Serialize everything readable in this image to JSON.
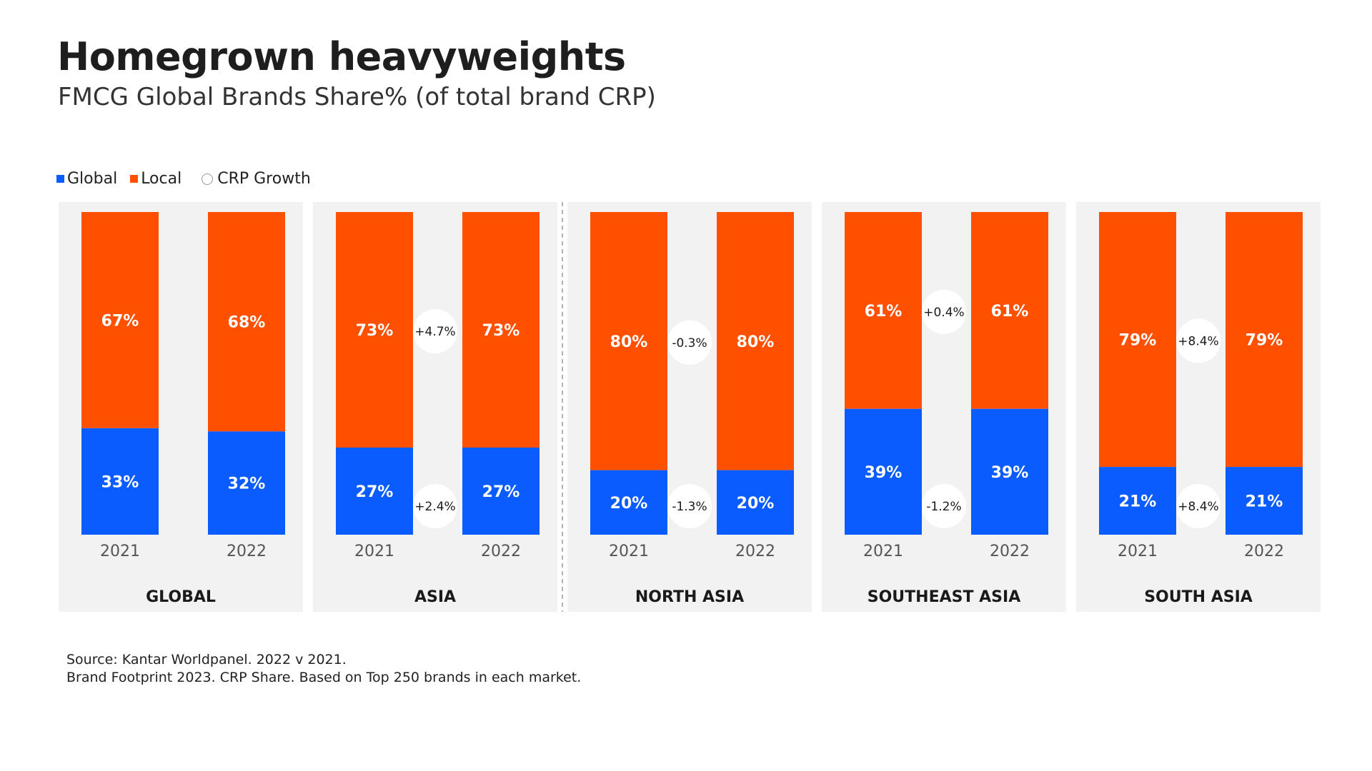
{
  "header": {
    "title": "Homegrown heavyweights",
    "subtitle": "FMCG Global Brands Share% (of total brand CRP)"
  },
  "legend": {
    "global_label": "Global",
    "local_label": "Local",
    "growth_label": "CRP Growth"
  },
  "colors": {
    "global": "#0b5cff",
    "local": "#ff5000",
    "panel": "#f2f2f2",
    "bubble": "#ffffff"
  },
  "chart_data": {
    "type": "bar",
    "stacked": true,
    "ylim": [
      0,
      100
    ],
    "categories": [
      "2021",
      "2022"
    ],
    "legend_position": "top-left",
    "groups": [
      {
        "name": "GLOBAL",
        "global": [
          33,
          32
        ],
        "local": [
          67,
          68
        ],
        "global_labels": [
          "33%",
          "32%"
        ],
        "local_labels": [
          "67%",
          "68%"
        ],
        "local_growth": "",
        "global_growth": ""
      },
      {
        "name": "ASIA",
        "global": [
          27,
          27
        ],
        "local": [
          73,
          73
        ],
        "global_labels": [
          "27%",
          "27%"
        ],
        "local_labels": [
          "73%",
          "73%"
        ],
        "local_growth": "+4.7%",
        "global_growth": "+2.4%"
      },
      {
        "name": "NORTH ASIA",
        "global": [
          20,
          20
        ],
        "local": [
          80,
          80
        ],
        "global_labels": [
          "20%",
          "20%"
        ],
        "local_labels": [
          "80%",
          "80%"
        ],
        "local_growth": "-0.3%",
        "global_growth": "-1.3%"
      },
      {
        "name": "SOUTHEAST ASIA",
        "global": [
          39,
          39
        ],
        "local": [
          61,
          61
        ],
        "global_labels": [
          "39%",
          "39%"
        ],
        "local_labels": [
          "61%",
          "61%"
        ],
        "local_growth": "+0.4%",
        "global_growth": "-1.2%"
      },
      {
        "name": "SOUTH ASIA",
        "global": [
          21,
          21
        ],
        "local": [
          79,
          79
        ],
        "global_labels": [
          "21%",
          "21%"
        ],
        "local_labels": [
          "79%",
          "79%"
        ],
        "local_growth": "+8.4%",
        "global_growth": "+8.4%"
      }
    ]
  },
  "footnote": {
    "line1": "Source: Kantar Worldpanel. 2022 v 2021.",
    "line2": "Brand Footprint 2023. CRP Share. Based on Top 250 brands in each market."
  }
}
